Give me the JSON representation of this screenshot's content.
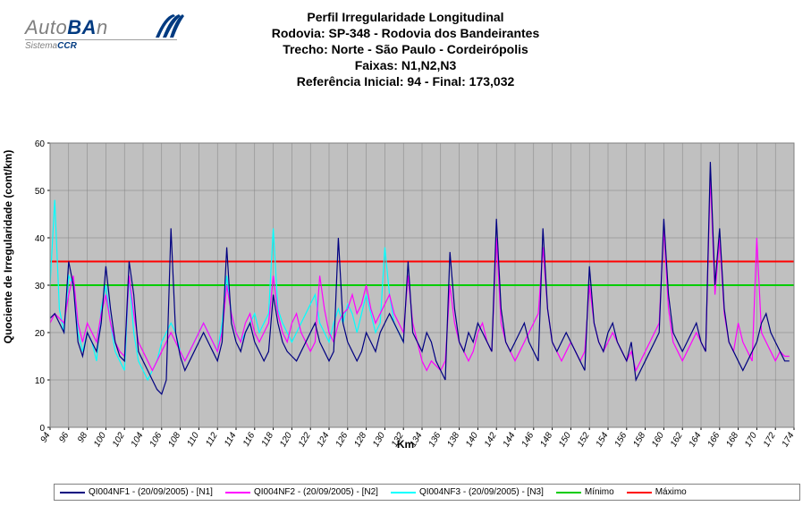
{
  "logo": {
    "prefix": "Auto",
    "bold": "BA",
    "suffix": "n",
    "sub_prefix": "Sistema",
    "sub_bold": "CCR",
    "swoosh_color": "#003a80"
  },
  "title_lines": [
    "Perfil Irregularidade Longitudinal",
    "Rodovia: SP-348 - Rodovia dos Bandeirantes",
    "Trecho: Norte - São Paulo - Cordeirópolis",
    "Faixas: N1,N2,N3",
    "Referência Inicial: 94 - Final: 173,032"
  ],
  "chart": {
    "type": "line",
    "background_color": "#c0c0c0",
    "grid_color": "#808080",
    "border_color": "#808080",
    "ylabel": "Quociente de Irregularidade (cont/km)",
    "xlabel": "Km",
    "ylim": [
      0,
      60
    ],
    "ytick_step": 10,
    "xlim": [
      94,
      174
    ],
    "xtick_step": 2,
    "xticks": [
      94,
      96,
      98,
      100,
      102,
      104,
      106,
      108,
      110,
      112,
      114,
      116,
      118,
      120,
      122,
      124,
      126,
      128,
      130,
      132,
      134,
      136,
      138,
      140,
      142,
      144,
      146,
      148,
      150,
      152,
      154,
      156,
      158,
      160,
      162,
      164,
      166,
      168,
      170,
      172,
      174
    ],
    "tick_fontsize": 10,
    "label_fontsize": 12,
    "reference_lines": {
      "minimo": {
        "value": 30,
        "color": "#00cc00",
        "width": 2
      },
      "maximo": {
        "value": 35,
        "color": "#ff0000",
        "width": 2
      }
    },
    "series": [
      {
        "name": "QI004NF1 - (20/09/2005) - [N1]",
        "color": "#000080",
        "width": 1.2,
        "x_start": 94,
        "x_step": 0.5,
        "values": [
          23,
          24,
          22,
          20,
          35,
          30,
          18,
          15,
          20,
          18,
          16,
          22,
          34,
          25,
          18,
          15,
          14,
          35,
          28,
          16,
          14,
          12,
          10,
          8,
          7,
          10,
          42,
          20,
          15,
          12,
          14,
          16,
          18,
          20,
          18,
          16,
          14,
          18,
          38,
          22,
          18,
          16,
          20,
          22,
          18,
          16,
          14,
          16,
          28,
          22,
          18,
          16,
          15,
          14,
          16,
          18,
          20,
          22,
          18,
          16,
          14,
          16,
          40,
          22,
          18,
          16,
          14,
          16,
          20,
          18,
          16,
          20,
          22,
          24,
          22,
          20,
          18,
          35,
          20,
          18,
          16,
          20,
          18,
          14,
          12,
          10,
          37,
          25,
          18,
          16,
          20,
          18,
          22,
          20,
          18,
          16,
          44,
          25,
          18,
          16,
          18,
          20,
          22,
          18,
          16,
          14,
          42,
          25,
          18,
          16,
          18,
          20,
          18,
          16,
          14,
          12,
          34,
          22,
          18,
          16,
          20,
          22,
          18,
          16,
          14,
          18,
          10,
          12,
          14,
          16,
          18,
          20,
          44,
          28,
          20,
          18,
          16,
          18,
          20,
          22,
          18,
          16,
          56,
          30,
          42,
          25,
          18,
          16,
          14,
          12,
          14,
          16,
          18,
          22,
          24,
          20,
          18,
          16,
          14,
          14
        ]
      },
      {
        "name": "QI004NF2 - (20/09/2005) - [N2]",
        "color": "#ff00ff",
        "width": 1.2,
        "x_start": 94,
        "x_step": 0.5,
        "values": [
          22,
          24,
          23,
          22,
          28,
          32,
          22,
          18,
          22,
          20,
          18,
          24,
          28,
          22,
          18,
          16,
          15,
          32,
          24,
          18,
          16,
          14,
          12,
          14,
          16,
          18,
          20,
          18,
          16,
          14,
          16,
          18,
          20,
          22,
          20,
          18,
          16,
          20,
          30,
          24,
          20,
          18,
          22,
          24,
          20,
          18,
          20,
          22,
          32,
          24,
          20,
          18,
          22,
          24,
          20,
          18,
          16,
          18,
          32,
          25,
          20,
          18,
          22,
          24,
          25,
          28,
          24,
          26,
          30,
          25,
          22,
          24,
          26,
          28,
          24,
          22,
          20,
          32,
          22,
          18,
          14,
          12,
          14,
          13,
          12,
          14,
          30,
          22,
          18,
          16,
          14,
          16,
          20,
          22,
          18,
          16,
          40,
          22,
          18,
          16,
          14,
          16,
          18,
          20,
          22,
          24,
          38,
          25,
          18,
          16,
          14,
          16,
          18,
          16,
          14,
          16,
          30,
          22,
          18,
          16,
          18,
          20,
          18,
          16,
          14,
          16,
          12,
          14,
          16,
          18,
          20,
          22,
          42,
          25,
          18,
          16,
          14,
          16,
          18,
          20,
          18,
          16,
          53,
          28,
          40,
          24,
          18,
          16,
          22,
          18,
          16,
          14,
          40,
          20,
          18,
          16,
          14,
          16,
          15,
          15
        ]
      },
      {
        "name": "QI004NF3 - (20/09/2005) - [N3]",
        "color": "#00ffff",
        "width": 1.2,
        "x_start": 94,
        "x_step": 0.5,
        "values": [
          30,
          48,
          25,
          20,
          32,
          30,
          20,
          16,
          20,
          18,
          14,
          25,
          30,
          22,
          16,
          14,
          12,
          32,
          20,
          14,
          12,
          10,
          12,
          14,
          18,
          20,
          22,
          20,
          16,
          14,
          16,
          18,
          20,
          22,
          20,
          18,
          16,
          22,
          32,
          24,
          20,
          18,
          20,
          22,
          24,
          20,
          22,
          24,
          42,
          25,
          22,
          20,
          18,
          20,
          22,
          24,
          26,
          28,
          22,
          20,
          18,
          22,
          25,
          22,
          26,
          24,
          20,
          24,
          28,
          24,
          20,
          22,
          38,
          28,
          22,
          20,
          18
        ]
      }
    ]
  },
  "legend": {
    "items": [
      {
        "label": "QI004NF1 - (20/09/2005) - [N1]",
        "color": "#000080"
      },
      {
        "label": "QI004NF2 - (20/09/2005) - [N2]",
        "color": "#ff00ff"
      },
      {
        "label": "QI004NF3 - (20/09/2005) - [N3]",
        "color": "#00ffff"
      },
      {
        "label": "Mínimo",
        "color": "#00cc00"
      },
      {
        "label": "Máximo",
        "color": "#ff0000"
      }
    ]
  }
}
